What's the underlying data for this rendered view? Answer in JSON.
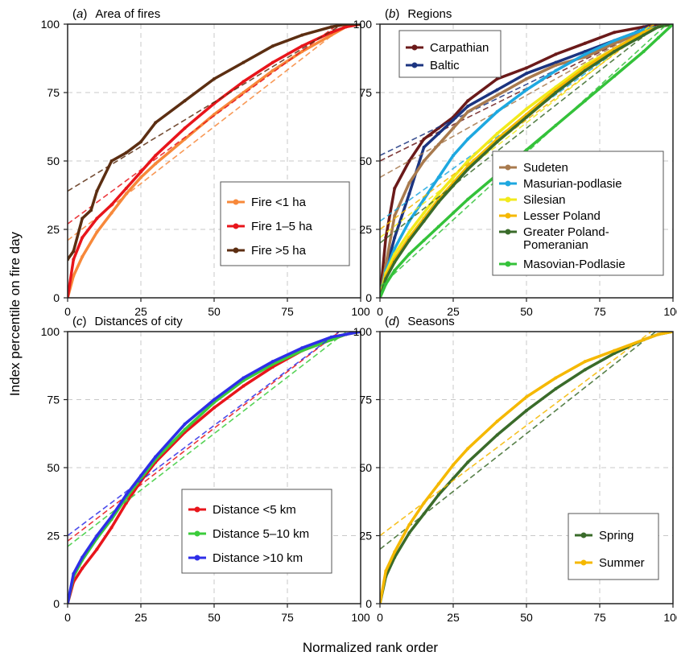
{
  "figure": {
    "ylabel": "Index percentile on fire day",
    "xlabel": "Normalized rank order"
  },
  "chart_data": [
    {
      "type": "line",
      "panel": "(a)",
      "panel_letter": "a",
      "title": "Area of fires",
      "xlim": [
        0,
        100
      ],
      "ylim": [
        0,
        100
      ],
      "xticks": [
        "0",
        "25",
        "50",
        "75",
        "100"
      ],
      "yticks": [
        "0",
        "25",
        "50",
        "75",
        "100"
      ],
      "grid": true,
      "legend_position": "center-right",
      "series": [
        {
          "name": "Fire <1 ha",
          "color": "#f7883a",
          "x": [
            0,
            2,
            5,
            10,
            15,
            20,
            25,
            30,
            40,
            50,
            60,
            70,
            80,
            90,
            95,
            100
          ],
          "y": [
            0,
            8,
            15,
            24,
            31,
            38,
            44,
            49,
            58,
            67,
            75,
            83,
            90,
            96,
            99,
            100
          ],
          "fit": [
            21,
            104
          ]
        },
        {
          "name": "Fire 1–5 ha",
          "color": "#e8151b",
          "x": [
            0,
            2,
            5,
            10,
            15,
            20,
            25,
            30,
            40,
            50,
            60,
            70,
            80,
            90,
            95,
            100
          ],
          "y": [
            0,
            14,
            22,
            29,
            34,
            40,
            46,
            52,
            62,
            71,
            79,
            86,
            92,
            97,
            99,
            100
          ],
          "fit": [
            27,
            106
          ]
        },
        {
          "name": "Fire >5 ha",
          "color": "#5c2e12",
          "x": [
            0,
            2,
            5,
            8,
            10,
            15,
            20,
            25,
            30,
            40,
            50,
            60,
            70,
            80,
            90,
            95,
            100
          ],
          "y": [
            14,
            17,
            29,
            32,
            39,
            50,
            53,
            57,
            64,
            72,
            80,
            86,
            92,
            96,
            99,
            100,
            100
          ],
          "fit": [
            39,
            104
          ]
        }
      ]
    },
    {
      "type": "line",
      "panel": "(b)",
      "panel_letter": "b",
      "title": "Regions",
      "xlim": [
        0,
        100
      ],
      "ylim": [
        0,
        100
      ],
      "xticks": [
        "0",
        "25",
        "50",
        "75",
        "100"
      ],
      "yticks": [
        "0",
        "25",
        "50",
        "75",
        "100"
      ],
      "grid": true,
      "legend_position": "top-left / bottom-right",
      "series": [
        {
          "name": "Carpathian",
          "color": "#6b1a1a",
          "legend_group": 1,
          "x": [
            0,
            2,
            5,
            10,
            15,
            20,
            25,
            30,
            40,
            50,
            60,
            70,
            80,
            90,
            95,
            100
          ],
          "y": [
            0,
            22,
            40,
            50,
            58,
            62,
            66,
            72,
            80,
            84,
            89,
            93,
            97,
            99,
            100,
            100
          ],
          "fit": [
            50,
            103
          ]
        },
        {
          "name": "Baltic",
          "color": "#1b3480",
          "legend_group": 1,
          "x": [
            0,
            2,
            5,
            10,
            15,
            20,
            25,
            30,
            40,
            50,
            60,
            70,
            80,
            90,
            95,
            100
          ],
          "y": [
            0,
            10,
            22,
            38,
            55,
            60,
            65,
            70,
            76,
            82,
            86,
            90,
            94,
            98,
            99,
            100
          ],
          "fit": [
            52,
            104
          ]
        },
        {
          "name": "Sudeten",
          "color": "#a87a4e",
          "legend_group": 2,
          "x": [
            0,
            2,
            5,
            10,
            15,
            20,
            25,
            30,
            40,
            50,
            60,
            70,
            80,
            90,
            95,
            100
          ],
          "y": [
            0,
            12,
            30,
            42,
            50,
            56,
            62,
            68,
            74,
            80,
            85,
            88,
            93,
            97,
            99,
            100
          ],
          "fit": [
            44,
            104
          ]
        },
        {
          "name": "Masurian-podlasie",
          "color": "#1ea8e0",
          "legend_group": 2,
          "x": [
            0,
            2,
            5,
            10,
            15,
            20,
            25,
            30,
            40,
            50,
            60,
            70,
            80,
            90,
            95,
            100
          ],
          "y": [
            0,
            10,
            18,
            28,
            36,
            44,
            52,
            58,
            68,
            76,
            83,
            89,
            94,
            98,
            99,
            100
          ],
          "fit": [
            28,
            105
          ]
        },
        {
          "name": "Silesian",
          "color": "#f2ea1c",
          "legend_group": 2,
          "x": [
            0,
            2,
            5,
            10,
            15,
            20,
            25,
            30,
            40,
            50,
            60,
            70,
            80,
            90,
            95,
            100
          ],
          "y": [
            0,
            9,
            16,
            24,
            31,
            38,
            44,
            50,
            60,
            69,
            77,
            85,
            91,
            97,
            99,
            100
          ],
          "fit": [
            22,
            106
          ]
        },
        {
          "name": "Lesser Poland",
          "color": "#f5b800",
          "legend_group": 2,
          "x": [
            0,
            2,
            5,
            10,
            15,
            20,
            25,
            30,
            40,
            50,
            60,
            70,
            80,
            90,
            95,
            100
          ],
          "y": [
            0,
            8,
            14,
            22,
            29,
            36,
            42,
            48,
            58,
            67,
            76,
            84,
            91,
            97,
            99,
            100
          ],
          "fit": [
            25,
            105
          ]
        },
        {
          "name": "Greater Poland-\nPomeranian",
          "color": "#3a6b2a",
          "legend_group": 2,
          "x": [
            0,
            2,
            5,
            10,
            15,
            20,
            25,
            30,
            40,
            50,
            60,
            70,
            80,
            90,
            95,
            100
          ],
          "y": [
            0,
            7,
            13,
            21,
            28,
            35,
            41,
            47,
            57,
            66,
            75,
            83,
            90,
            96,
            99,
            100
          ],
          "fit": [
            20,
            104
          ]
        },
        {
          "name": "Masovian-Podlasie",
          "color": "#34c23a",
          "legend_group": 2,
          "x": [
            0,
            2,
            5,
            10,
            15,
            20,
            25,
            30,
            40,
            50,
            60,
            70,
            80,
            90,
            95,
            100
          ],
          "y": [
            0,
            5,
            10,
            16,
            21,
            26,
            31,
            36,
            45,
            54,
            63,
            72,
            81,
            90,
            95,
            100
          ],
          "fit": [
            4,
            102
          ]
        }
      ]
    },
    {
      "type": "line",
      "panel": "(c)",
      "panel_letter": "c",
      "title": "Distances of city",
      "xlim": [
        0,
        100
      ],
      "ylim": [
        0,
        100
      ],
      "xticks": [
        "0",
        "25",
        "50",
        "75",
        "100"
      ],
      "yticks": [
        "0",
        "25",
        "50",
        "75",
        "100"
      ],
      "grid": true,
      "legend_position": "bottom-right",
      "series": [
        {
          "name": "Distance <5 km",
          "color": "#e8151b",
          "x": [
            0,
            2,
            5,
            10,
            15,
            20,
            25,
            30,
            40,
            50,
            60,
            70,
            80,
            90,
            95,
            100
          ],
          "y": [
            0,
            8,
            13,
            20,
            28,
            37,
            45,
            52,
            63,
            72,
            80,
            87,
            93,
            97,
            99,
            100
          ],
          "fit": [
            23,
            106
          ]
        },
        {
          "name": "Distance 5–10 km",
          "color": "#3bcc3b",
          "x": [
            0,
            2,
            5,
            10,
            15,
            20,
            25,
            30,
            40,
            50,
            60,
            70,
            80,
            90,
            95,
            100
          ],
          "y": [
            0,
            10,
            16,
            24,
            31,
            39,
            46,
            53,
            64,
            74,
            82,
            88,
            93,
            97,
            99,
            100
          ],
          "fit": [
            21,
            104
          ]
        },
        {
          "name": "Distance >10 km",
          "color": "#2e2ee8",
          "x": [
            0,
            2,
            5,
            10,
            15,
            20,
            25,
            30,
            40,
            50,
            60,
            70,
            80,
            90,
            95,
            100
          ],
          "y": [
            0,
            11,
            17,
            25,
            32,
            40,
            47,
            54,
            66,
            75,
            83,
            89,
            94,
            98,
            99,
            100
          ],
          "fit": [
            25,
            106
          ]
        }
      ]
    },
    {
      "type": "line",
      "panel": "(d)",
      "panel_letter": "d",
      "title": "Seasons",
      "xlim": [
        0,
        100
      ],
      "ylim": [
        0,
        100
      ],
      "xticks": [
        "0",
        "25",
        "50",
        "75",
        "100"
      ],
      "yticks": [
        "0",
        "25",
        "50",
        "75",
        "100"
      ],
      "grid": true,
      "legend_position": "bottom-right",
      "series": [
        {
          "name": "Spring",
          "color": "#3a6b2a",
          "x": [
            0,
            2,
            5,
            10,
            15,
            20,
            25,
            30,
            40,
            50,
            60,
            70,
            80,
            90,
            95,
            100
          ],
          "y": [
            0,
            10,
            17,
            26,
            33,
            40,
            46,
            52,
            62,
            71,
            79,
            86,
            92,
            97,
            99,
            100
          ],
          "fit": [
            20,
            105
          ]
        },
        {
          "name": "Summer",
          "color": "#f5b800",
          "x": [
            0,
            2,
            5,
            10,
            15,
            20,
            25,
            30,
            40,
            50,
            60,
            70,
            80,
            90,
            95,
            100
          ],
          "y": [
            0,
            12,
            19,
            29,
            37,
            44,
            51,
            57,
            67,
            76,
            83,
            89,
            93,
            97,
            99,
            100
          ],
          "fit": [
            25,
            106
          ]
        }
      ]
    }
  ]
}
